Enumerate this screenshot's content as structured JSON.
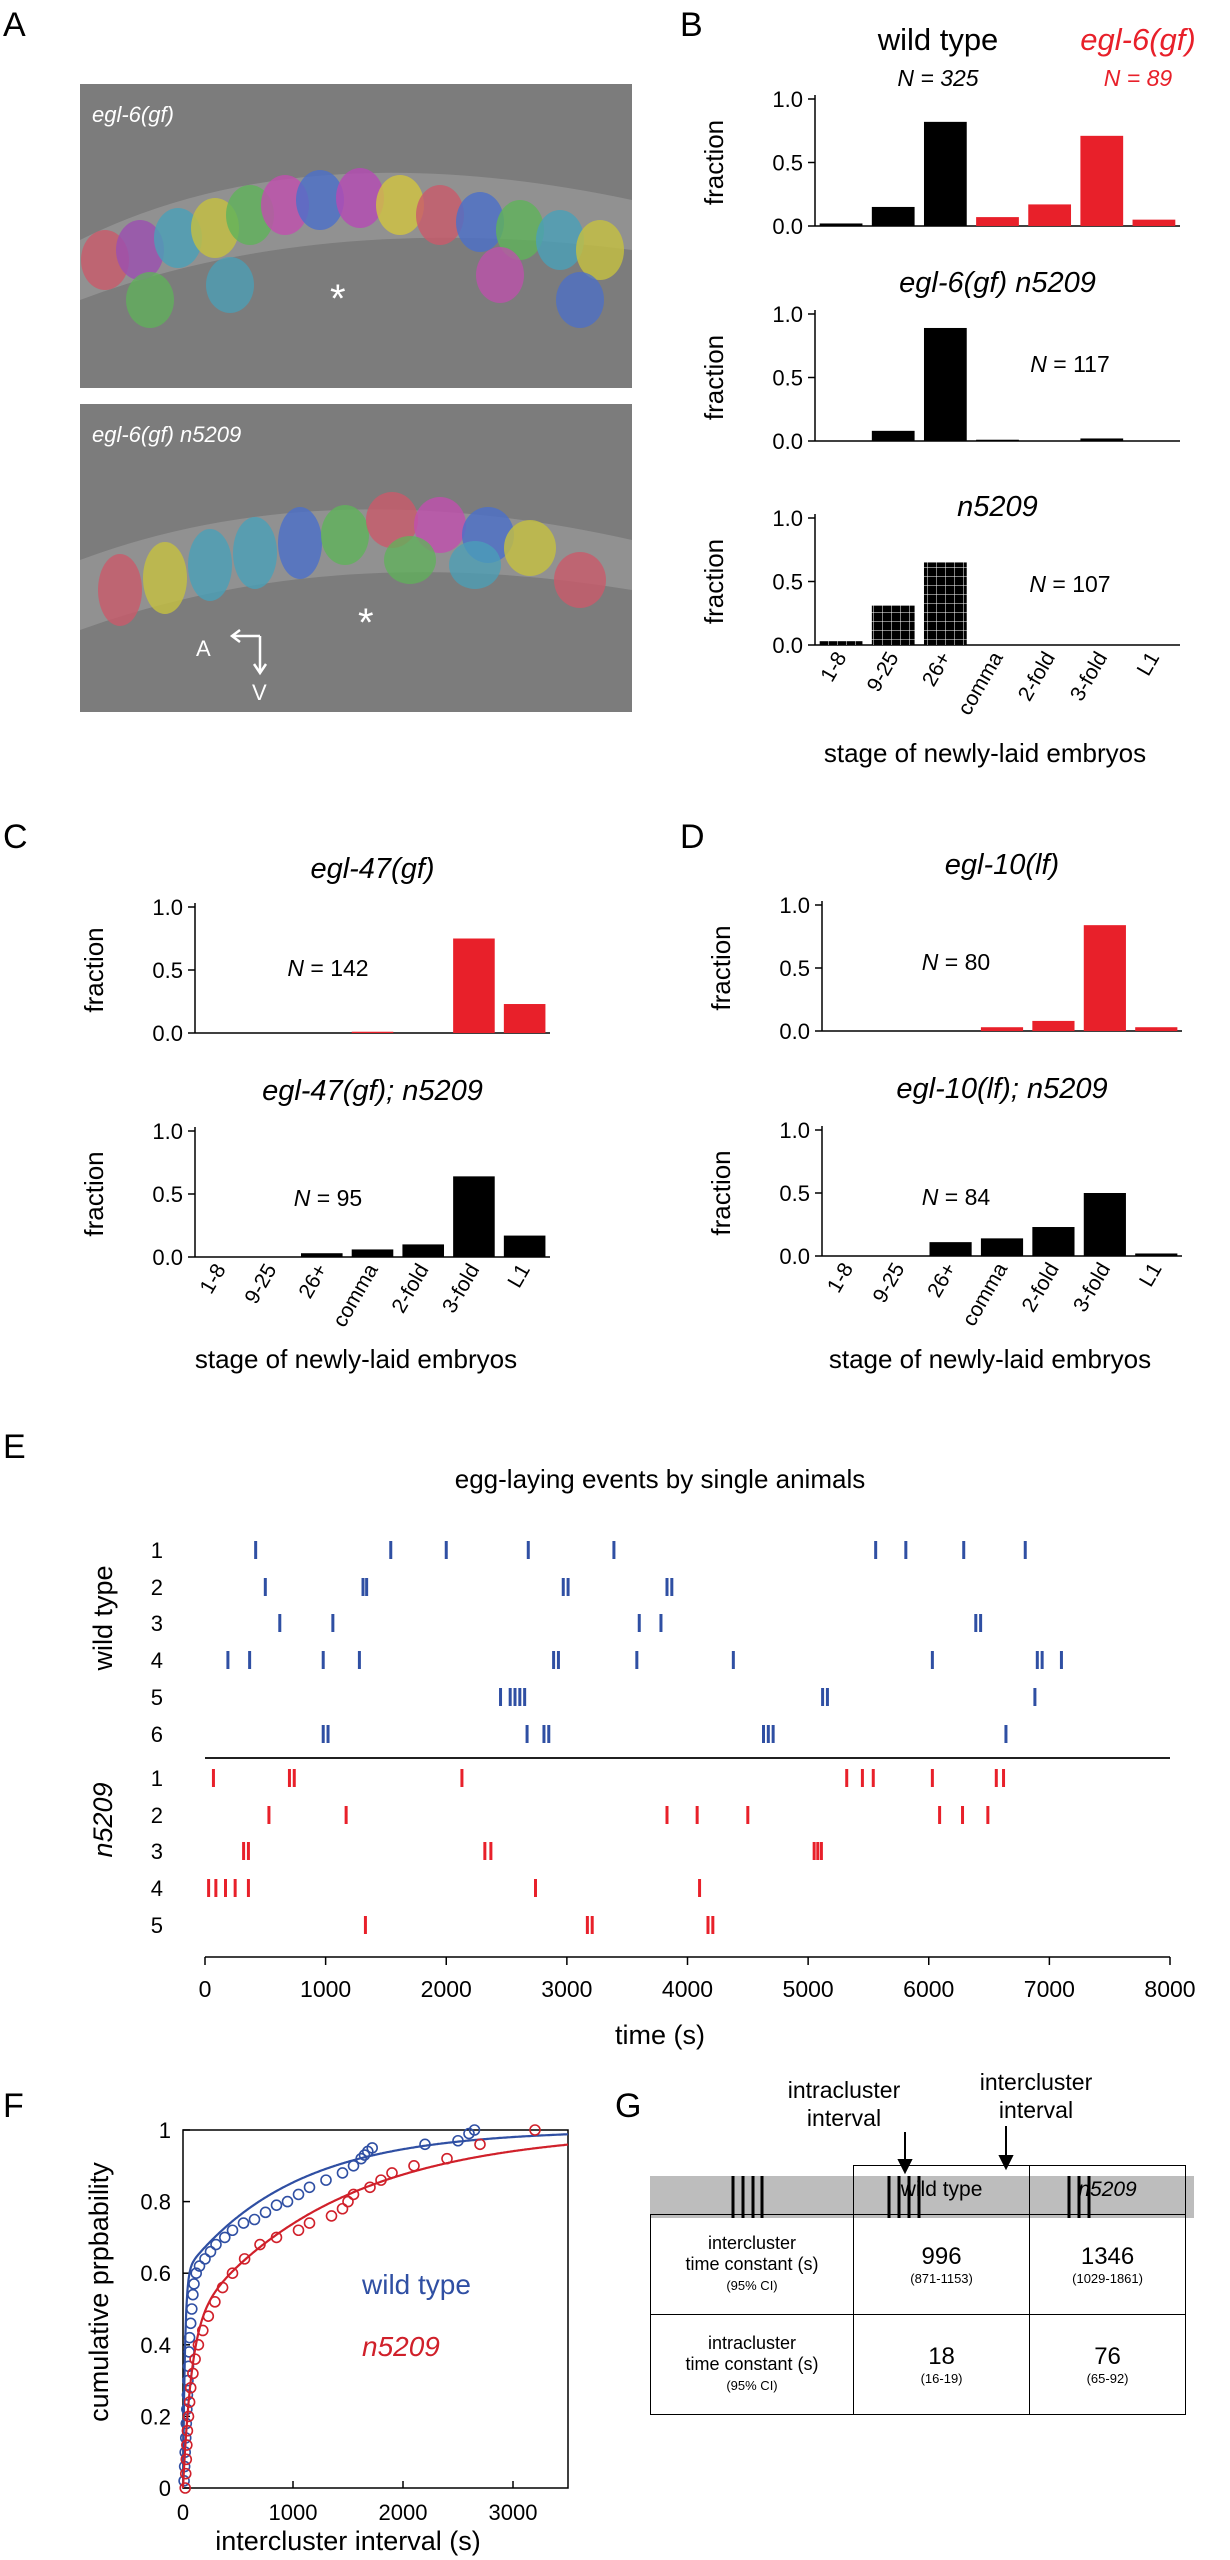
{
  "panels": {
    "A": {
      "letter": "A",
      "top_label": "egl-6(gf)",
      "bottom_label": "egl-6(gf) n5209",
      "asterisk": "*",
      "axis_a": "A",
      "axis_v": "V"
    },
    "B": {
      "letter": "B",
      "legend_wt": "wild type",
      "legend_wt_n": "N = 325",
      "legend_gf": "egl-6(gf)",
      "legend_gf_n": "N = 89",
      "xlabel": "stage of newly-laid embryos"
    },
    "C": {
      "letter": "C",
      "xlabel": "stage of newly-laid embryos"
    },
    "D": {
      "letter": "D",
      "xlabel": "stage of newly-laid embryos"
    },
    "E": {
      "letter": "E",
      "title": "egg-laying events by single animals",
      "group_wt": "wild type",
      "group_mut": "n5209",
      "xlabel": "time (s)"
    },
    "F": {
      "letter": "F",
      "ylabel": "cumulative prpbability",
      "xlabel": "intercluster interval (s)",
      "legend_wt": "wild type",
      "legend_mut": "n5209"
    },
    "G": {
      "letter": "G",
      "intra_label_1": "intracluster",
      "intra_label_2": "interval",
      "inter_label_1": "intercluster",
      "inter_label_2": "interval",
      "table": {
        "col_wt": "wild type",
        "col_mut": "n5209",
        "row1_label_1": "intercluster",
        "row1_label_2": "time constant (s)",
        "row1_ci": "(95% CI)",
        "row1_wt": "996",
        "row1_wt_ci": "(871-1153)",
        "row1_mut": "1346",
        "row1_mut_ci": "(1029-1861)",
        "row2_label_1": "intracluster",
        "row2_label_2": "time constant (s)",
        "row2_ci": "(95% CI)",
        "row2_wt": "18",
        "row2_wt_ci": "(16-19)",
        "row2_mut": "76",
        "row2_mut_ci": "(65-92)"
      }
    }
  },
  "colors": {
    "black": "#000000",
    "red": "#e8202a",
    "blue": "#2f4fa3",
    "red_dark": "#d0202a",
    "gray": "#bdbdbd"
  },
  "chart_data": [
    {
      "id": "B1",
      "type": "bar",
      "panel": "B",
      "ylabel": "fraction",
      "ylim": [
        0,
        1
      ],
      "yticks": [
        "1.0",
        "0.5",
        "0.0"
      ],
      "categories": [
        "1-8",
        "9-25",
        "26+",
        "comma",
        "2-fold",
        "3-fold",
        "L1"
      ],
      "series": [
        {
          "name": "wild type",
          "values": [
            0.02,
            0.15,
            0.82,
            0,
            0,
            0,
            0
          ]
        },
        {
          "name": "egl-6(gf)",
          "values": [
            0,
            0,
            0,
            0.07,
            0.17,
            0.71,
            0.05
          ]
        }
      ]
    },
    {
      "id": "B2",
      "type": "bar",
      "panel": "B",
      "title": "egl-6(gf) n5209",
      "n_label": "N = 117",
      "ylabel": "fraction",
      "ylim": [
        0,
        1
      ],
      "yticks": [
        "1.0",
        "0.5",
        "0.0"
      ],
      "categories": [
        "1-8",
        "9-25",
        "26+",
        "comma",
        "2-fold",
        "3-fold",
        "L1"
      ],
      "series": [
        {
          "values": [
            0,
            0.08,
            0.89,
            0.01,
            0,
            0.02,
            0
          ]
        }
      ]
    },
    {
      "id": "B3",
      "type": "bar",
      "panel": "B",
      "title": "n5209",
      "n_label": "N = 107",
      "ylabel": "fraction",
      "ylim": [
        0,
        1
      ],
      "yticks": [
        "1.0",
        "0.5",
        "0.0"
      ],
      "categories": [
        "1-8",
        "9-25",
        "26+",
        "comma",
        "2-fold",
        "3-fold",
        "L1"
      ],
      "series": [
        {
          "values": [
            0.03,
            0.31,
            0.65,
            0,
            0,
            0,
            0
          ]
        }
      ]
    },
    {
      "id": "C1",
      "type": "bar",
      "panel": "C",
      "title": "egl-47(gf)",
      "n_label": "N = 142",
      "ylabel": "fraction",
      "ylim": [
        0,
        1
      ],
      "yticks": [
        "1.0",
        "0.5",
        "0.0"
      ],
      "categories": [
        "1-8",
        "9-25",
        "26+",
        "comma",
        "2-fold",
        "3-fold",
        "L1"
      ],
      "series": [
        {
          "values": [
            0,
            0,
            0,
            0.01,
            0,
            0.75,
            0.23
          ]
        }
      ]
    },
    {
      "id": "C2",
      "type": "bar",
      "panel": "C",
      "title": "egl-47(gf); n5209",
      "n_label": "N = 95",
      "ylabel": "fraction",
      "ylim": [
        0,
        1
      ],
      "yticks": [
        "1.0",
        "0.5",
        "0.0"
      ],
      "categories": [
        "1-8",
        "9-25",
        "26+",
        "comma",
        "2-fold",
        "3-fold",
        "L1"
      ],
      "series": [
        {
          "values": [
            0,
            0,
            0.03,
            0.06,
            0.1,
            0.64,
            0.17
          ]
        }
      ]
    },
    {
      "id": "D1",
      "type": "bar",
      "panel": "D",
      "title": "egl-10(lf)",
      "n_label": "N = 80",
      "ylabel": "fraction",
      "ylim": [
        0,
        1
      ],
      "yticks": [
        "1.0",
        "0.5",
        "0.0"
      ],
      "categories": [
        "1-8",
        "9-25",
        "26+",
        "comma",
        "2-fold",
        "3-fold",
        "L1"
      ],
      "series": [
        {
          "values": [
            0,
            0,
            0,
            0.03,
            0.08,
            0.84,
            0.03
          ]
        }
      ]
    },
    {
      "id": "D2",
      "type": "bar",
      "panel": "D",
      "title": "egl-10(lf); n5209",
      "n_label": "N = 84",
      "ylabel": "fraction",
      "ylim": [
        0,
        1
      ],
      "yticks": [
        "1.0",
        "0.5",
        "0.0"
      ],
      "categories": [
        "1-8",
        "9-25",
        "26+",
        "comma",
        "2-fold",
        "3-fold",
        "L1"
      ],
      "series": [
        {
          "values": [
            0,
            0,
            0.11,
            0.14,
            0.23,
            0.5,
            0.02
          ]
        }
      ]
    },
    {
      "id": "E",
      "type": "scatter",
      "panel": "E",
      "subtype": "raster",
      "xlim": [
        0,
        8000
      ],
      "xticks": [
        0,
        1000,
        2000,
        3000,
        4000,
        5000,
        6000,
        7000,
        8000
      ],
      "series": [
        {
          "name": "wild type",
          "animals": [
            {
              "label": "1",
              "events": [
                420,
                1540,
                2000,
                2680,
                3390,
                5560,
                5810,
                6290,
                6800
              ]
            },
            {
              "label": "2",
              "events": [
                500,
                1310,
                1340,
                2970,
                3010,
                3830,
                3870
              ]
            },
            {
              "label": "3",
              "events": [
                620,
                1060,
                3600,
                3780,
                6390,
                6430
              ]
            },
            {
              "label": "4",
              "events": [
                190,
                370,
                980,
                1280,
                2890,
                2930,
                3580,
                4380,
                6030,
                6900,
                6940,
                7100
              ]
            },
            {
              "label": "5",
              "events": [
                2450,
                2530,
                2570,
                2610,
                2650,
                5120,
                5160,
                6880
              ]
            },
            {
              "label": "6",
              "events": [
                980,
                1020,
                2670,
                2810,
                2850,
                4630,
                4670,
                4710,
                6640
              ]
            }
          ]
        },
        {
          "name": "n5209",
          "animals": [
            {
              "label": "1",
              "events": [
                70,
                700,
                740,
                2130,
                5320,
                5450,
                5540,
                6030,
                6560,
                6620
              ]
            },
            {
              "label": "2",
              "events": [
                530,
                1170,
                3830,
                4080,
                4500,
                6090,
                6280,
                6490
              ]
            },
            {
              "label": "3",
              "events": [
                320,
                360,
                2320,
                2370,
                5050,
                5080,
                5110
              ]
            },
            {
              "label": "4",
              "events": [
                30,
                90,
                170,
                250,
                360,
                2740,
                4100
              ]
            },
            {
              "label": "5",
              "events": [
                1330,
                3170,
                3210,
                4170,
                4210
              ]
            }
          ]
        }
      ]
    },
    {
      "id": "F",
      "type": "scatter",
      "panel": "F",
      "xlim": [
        0,
        3500
      ],
      "ylim": [
        0,
        1
      ],
      "xticks": [
        0,
        1000,
        2000,
        3000
      ],
      "yticks": [
        0,
        0.2,
        0.4,
        0.6,
        0.8,
        1
      ],
      "series": [
        {
          "name": "wild type",
          "tau": 996,
          "points": [
            [
              10,
              0.02
            ],
            [
              15,
              0.06
            ],
            [
              20,
              0.1
            ],
            [
              25,
              0.14
            ],
            [
              30,
              0.18
            ],
            [
              35,
              0.22
            ],
            [
              40,
              0.26
            ],
            [
              45,
              0.3
            ],
            [
              50,
              0.34
            ],
            [
              55,
              0.38
            ],
            [
              60,
              0.42
            ],
            [
              70,
              0.46
            ],
            [
              80,
              0.5
            ],
            [
              90,
              0.54
            ],
            [
              100,
              0.57
            ],
            [
              120,
              0.6
            ],
            [
              150,
              0.62
            ],
            [
              200,
              0.64
            ],
            [
              250,
              0.66
            ],
            [
              300,
              0.68
            ],
            [
              380,
              0.7
            ],
            [
              450,
              0.72
            ],
            [
              550,
              0.74
            ],
            [
              650,
              0.75
            ],
            [
              750,
              0.77
            ],
            [
              850,
              0.79
            ],
            [
              950,
              0.8
            ],
            [
              1050,
              0.82
            ],
            [
              1150,
              0.84
            ],
            [
              1300,
              0.86
            ],
            [
              1450,
              0.88
            ],
            [
              1550,
              0.9
            ],
            [
              1620,
              0.92
            ],
            [
              1650,
              0.93
            ],
            [
              1680,
              0.94
            ],
            [
              1720,
              0.95
            ],
            [
              2200,
              0.96
            ],
            [
              2500,
              0.97
            ],
            [
              2600,
              0.99
            ],
            [
              2650,
              1.0
            ]
          ]
        },
        {
          "name": "n5209",
          "tau": 1346,
          "points": [
            [
              20,
              0.0
            ],
            [
              25,
              0.04
            ],
            [
              30,
              0.08
            ],
            [
              35,
              0.12
            ],
            [
              40,
              0.16
            ],
            [
              50,
              0.2
            ],
            [
              60,
              0.24
            ],
            [
              70,
              0.28
            ],
            [
              90,
              0.32
            ],
            [
              110,
              0.36
            ],
            [
              140,
              0.4
            ],
            [
              180,
              0.44
            ],
            [
              230,
              0.48
            ],
            [
              290,
              0.52
            ],
            [
              360,
              0.56
            ],
            [
              450,
              0.6
            ],
            [
              560,
              0.64
            ],
            [
              700,
              0.68
            ],
            [
              850,
              0.7
            ],
            [
              1050,
              0.72
            ],
            [
              1150,
              0.74
            ],
            [
              1350,
              0.76
            ],
            [
              1450,
              0.78
            ],
            [
              1500,
              0.8
            ],
            [
              1550,
              0.82
            ],
            [
              1700,
              0.84
            ],
            [
              1800,
              0.86
            ],
            [
              1900,
              0.88
            ],
            [
              2100,
              0.9
            ],
            [
              2400,
              0.92
            ],
            [
              2700,
              0.96
            ],
            [
              3200,
              1.0
            ]
          ]
        }
      ]
    }
  ]
}
